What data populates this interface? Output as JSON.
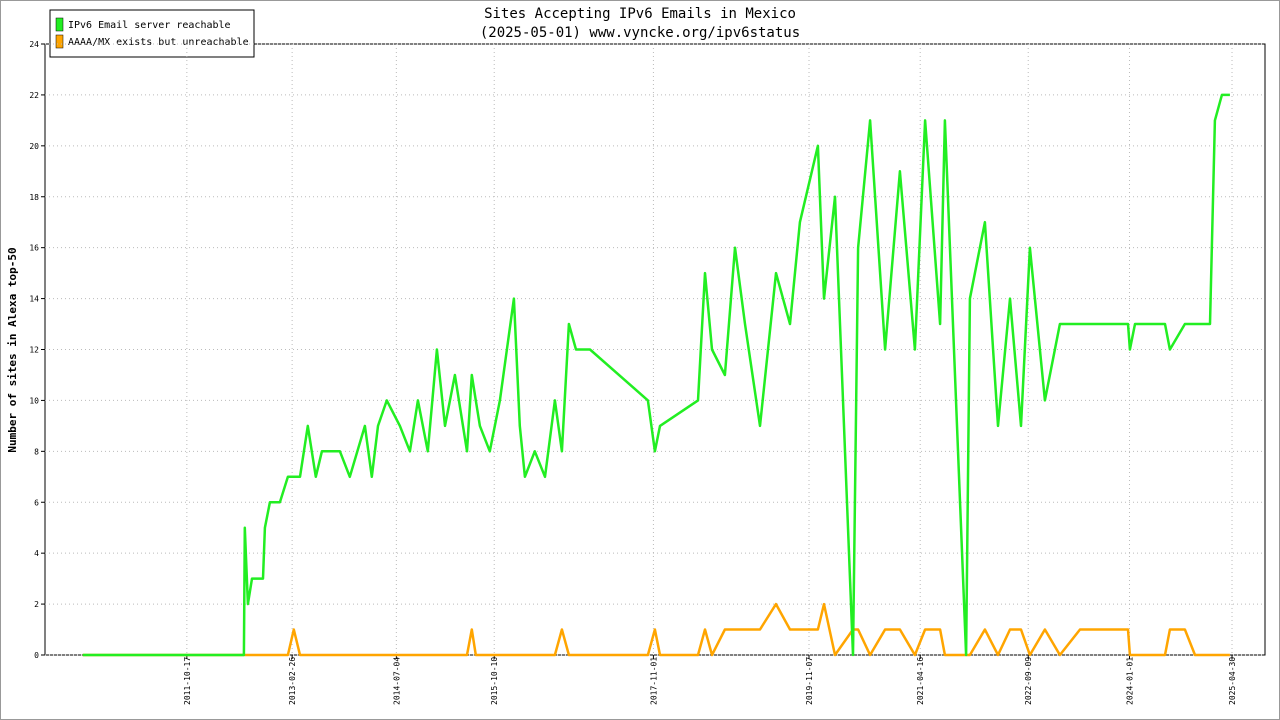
{
  "chart_data": {
    "type": "line",
    "title": "Sites Accepting IPv6 Emails in Mexico",
    "subtitle": "(2025-05-01) www.vyncke.org/ipv6status",
    "y_label": "Number of sites in Alexa top-50",
    "legend_position": "top-left",
    "grid": true,
    "xlim": [
      "2009-12-15",
      "2025-10-03"
    ],
    "xticks": [
      "2011-10-17",
      "2013-02-26",
      "2014-07-04",
      "2015-10-10",
      "2017-11-01",
      "2019-11-07",
      "2021-04-16",
      "2022-09-09",
      "2024-01-01",
      "2025-04-30"
    ],
    "ylim": [
      0,
      24
    ],
    "yticks": [
      0,
      2,
      4,
      6,
      8,
      10,
      12,
      14,
      16,
      18,
      20,
      22,
      24
    ],
    "x": [
      "2010-06-12",
      "2012-07-13",
      "2012-07-17",
      "2012-08-01",
      "2012-08-20",
      "2012-10-11",
      "2012-10-20",
      "2012-11-13",
      "2012-12-30",
      "2013-02-06",
      "2013-03-06",
      "2013-04-04",
      "2013-05-11",
      "2013-06-18",
      "2013-07-17",
      "2013-10-10",
      "2013-11-26",
      "2014-02-05",
      "2014-03-10",
      "2014-04-08",
      "2014-05-20",
      "2014-07-21",
      "2014-09-06",
      "2014-10-14",
      "2014-11-30",
      "2015-01-12",
      "2015-02-19",
      "2015-04-07",
      "2015-06-03",
      "2015-06-26",
      "2015-07-15",
      "2015-08-03",
      "2015-09-19",
      "2015-11-06",
      "2015-12-09",
      "2016-01-11",
      "2016-02-08",
      "2016-03-03",
      "2016-04-19",
      "2016-06-06",
      "2016-07-23",
      "2016-08-25",
      "2016-09-27",
      "2016-10-31",
      "2017-01-05",
      "2017-10-06",
      "2017-11-08",
      "2017-12-02",
      "2018-05-31",
      "2018-07-03",
      "2018-08-05",
      "2018-10-05",
      "2018-11-22",
      "2019-01-08",
      "2019-03-20",
      "2019-06-04",
      "2019-08-09",
      "2019-09-25",
      "2019-12-19",
      "2020-01-17",
      "2020-03-09",
      "2020-06-02",
      "2020-06-26",
      "2020-08-22",
      "2020-11-01",
      "2021-01-10",
      "2021-03-22",
      "2021-05-09",
      "2021-07-19",
      "2021-08-11",
      "2021-11-19",
      "2021-12-07",
      "2022-02-16",
      "2022-04-19",
      "2022-06-15",
      "2022-08-06",
      "2022-09-17",
      "2022-11-27",
      "2023-02-06",
      "2023-05-12",
      "2023-12-25",
      "2024-01-03",
      "2024-01-27",
      "2024-06-17",
      "2024-07-10",
      "2024-09-19",
      "2024-11-06",
      "2025-01-16",
      "2025-02-08",
      "2025-03-13",
      "2025-04-20"
    ],
    "series": [
      {
        "name": "IPv6 Email server reachable",
        "color": "#22ee22",
        "values": [
          0,
          0,
          5,
          2,
          3,
          3,
          5,
          6,
          6,
          7,
          7,
          7,
          9,
          7,
          8,
          8,
          7,
          9,
          7,
          9,
          10,
          9,
          8,
          10,
          8,
          12,
          9,
          11,
          8,
          11,
          10,
          9,
          8,
          10,
          12,
          14,
          9,
          7,
          8,
          7,
          10,
          8,
          13,
          12,
          12,
          10,
          8,
          9,
          10,
          15,
          12,
          11,
          16,
          13,
          9,
          15,
          13,
          17,
          20,
          14,
          18,
          0,
          16,
          21,
          12,
          19,
          12,
          21,
          13,
          21,
          0,
          14,
          17,
          9,
          14,
          9,
          16,
          10,
          13,
          13,
          13,
          12,
          13,
          13,
          12,
          13,
          13,
          13,
          21,
          22,
          22
        ]
      },
      {
        "name": "AAAA/MX exists but unreachable",
        "color": "#ffa500",
        "values": [
          0,
          0,
          0,
          0,
          0,
          0,
          0,
          0,
          0,
          0,
          1,
          0,
          0,
          0,
          0,
          0,
          0,
          0,
          0,
          0,
          0,
          0,
          0,
          0,
          0,
          0,
          0,
          0,
          0,
          1,
          0,
          0,
          0,
          0,
          0,
          0,
          0,
          0,
          0,
          0,
          0,
          1,
          0,
          0,
          0,
          0,
          1,
          0,
          0,
          1,
          0,
          1,
          1,
          1,
          1,
          2,
          1,
          1,
          1,
          2,
          0,
          1,
          1,
          0,
          1,
          1,
          0,
          1,
          1,
          0,
          0,
          0,
          1,
          0,
          1,
          1,
          0,
          1,
          0,
          1,
          1,
          0,
          0,
          0,
          1,
          1,
          0,
          0,
          0,
          0,
          0
        ]
      }
    ]
  }
}
